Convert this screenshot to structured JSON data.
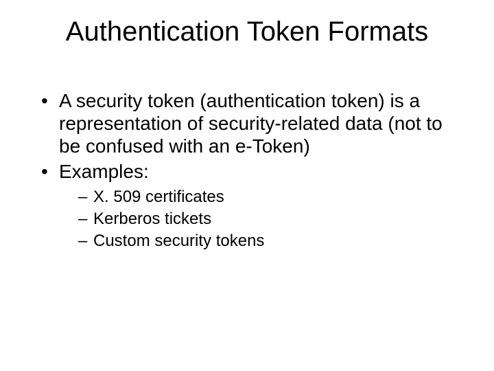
{
  "slide": {
    "title": "Authentication Token Formats",
    "title_fontsize": 40,
    "body_fontsize": 28,
    "sub_fontsize": 24,
    "text_color": "#000000",
    "background_color": "#ffffff",
    "bullets": [
      {
        "text": "A security token (authentication token) is a representation of security-related data (not to be confused with an e-Token)"
      },
      {
        "text": "Examples:",
        "sub": [
          "X. 509 certificates",
          "Kerberos tickets",
          "Custom security tokens"
        ]
      }
    ]
  }
}
